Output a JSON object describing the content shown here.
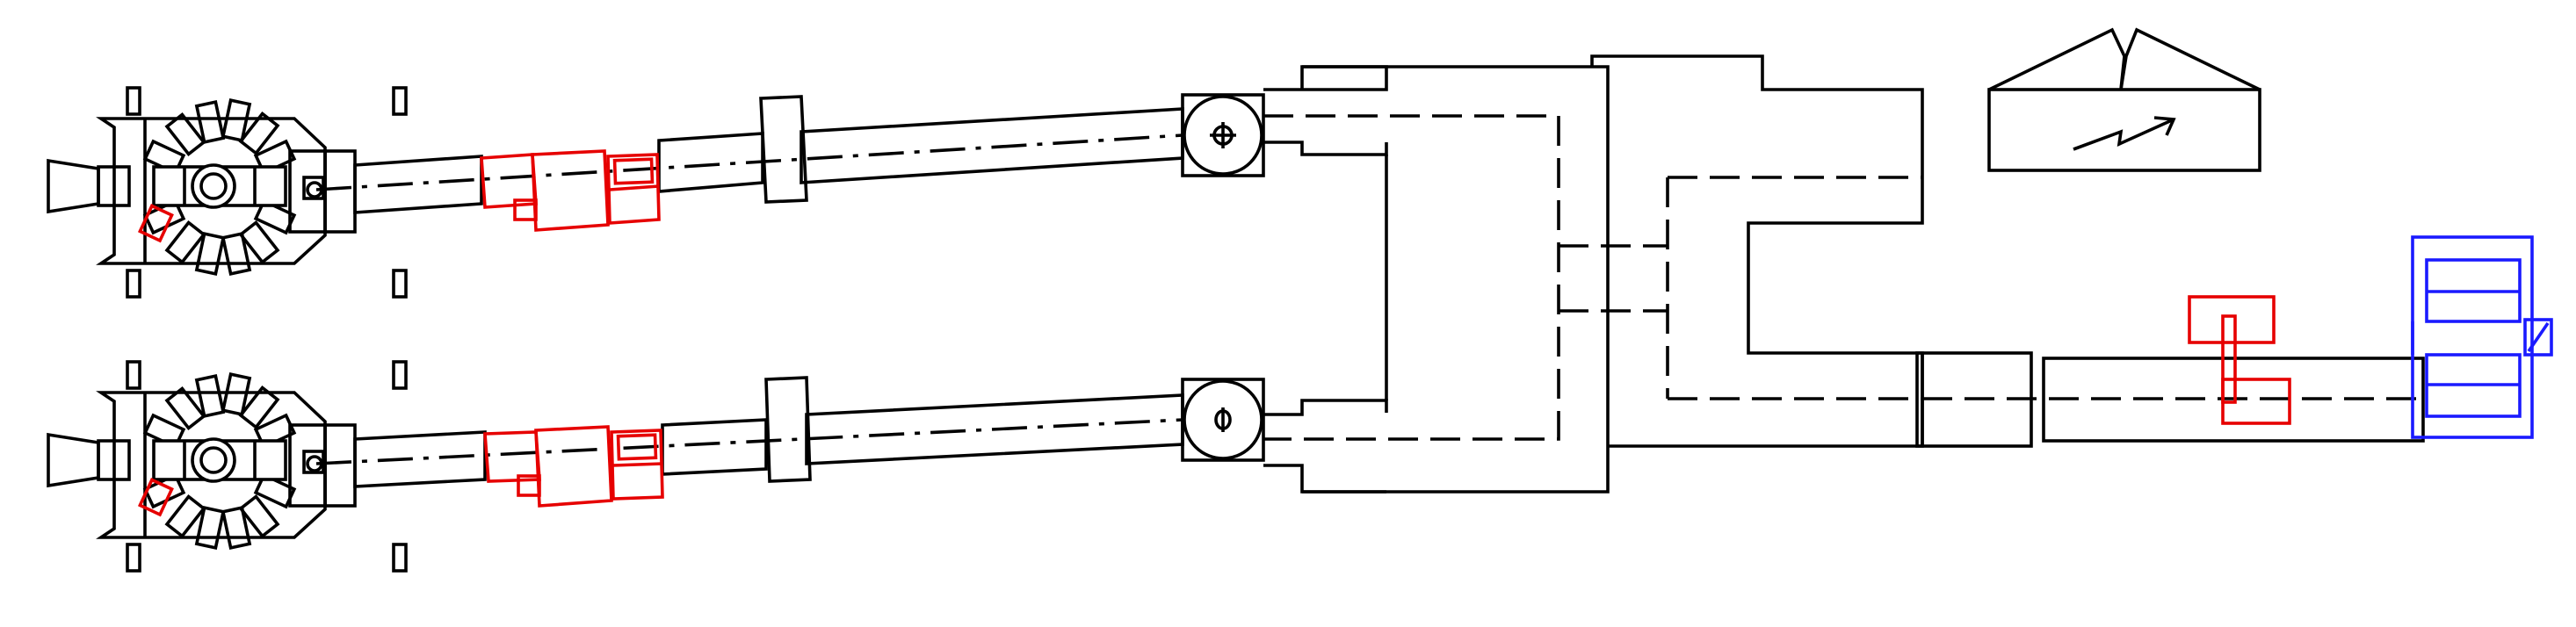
{
  "diagram": {
    "type": "mechanical schematic (line drawing, no printed text)",
    "colors": {
      "line": "#000000",
      "accent": "#e60000",
      "blue": "#1a1aff",
      "background": "#ffffff"
    },
    "components": [
      {
        "name": "upper-drive-head",
        "kind": "rotor-assembly",
        "color": "line"
      },
      {
        "name": "lower-drive-head",
        "kind": "rotor-assembly",
        "color": "line"
      },
      {
        "name": "upper-shaft",
        "kind": "shaft",
        "color": "line"
      },
      {
        "name": "lower-shaft",
        "kind": "shaft",
        "color": "line"
      },
      {
        "name": "upper-coupling",
        "kind": "coupling",
        "color": "accent"
      },
      {
        "name": "lower-coupling",
        "kind": "coupling",
        "color": "accent"
      },
      {
        "name": "upper-joint",
        "kind": "pivot-joint",
        "color": "line"
      },
      {
        "name": "lower-joint",
        "kind": "pivot-joint",
        "color": "line"
      },
      {
        "name": "gearbox-housing",
        "kind": "housing",
        "color": "line"
      },
      {
        "name": "motor-symbol",
        "kind": "motor",
        "color": "line"
      },
      {
        "name": "output-shaft",
        "kind": "shaft",
        "color": "line"
      },
      {
        "name": "output-crank",
        "kind": "crank",
        "color": "accent"
      },
      {
        "name": "end-bracket",
        "kind": "bracket",
        "color": "blue"
      }
    ],
    "icons": [
      "pivot-icon",
      "lightning-icon"
    ]
  }
}
